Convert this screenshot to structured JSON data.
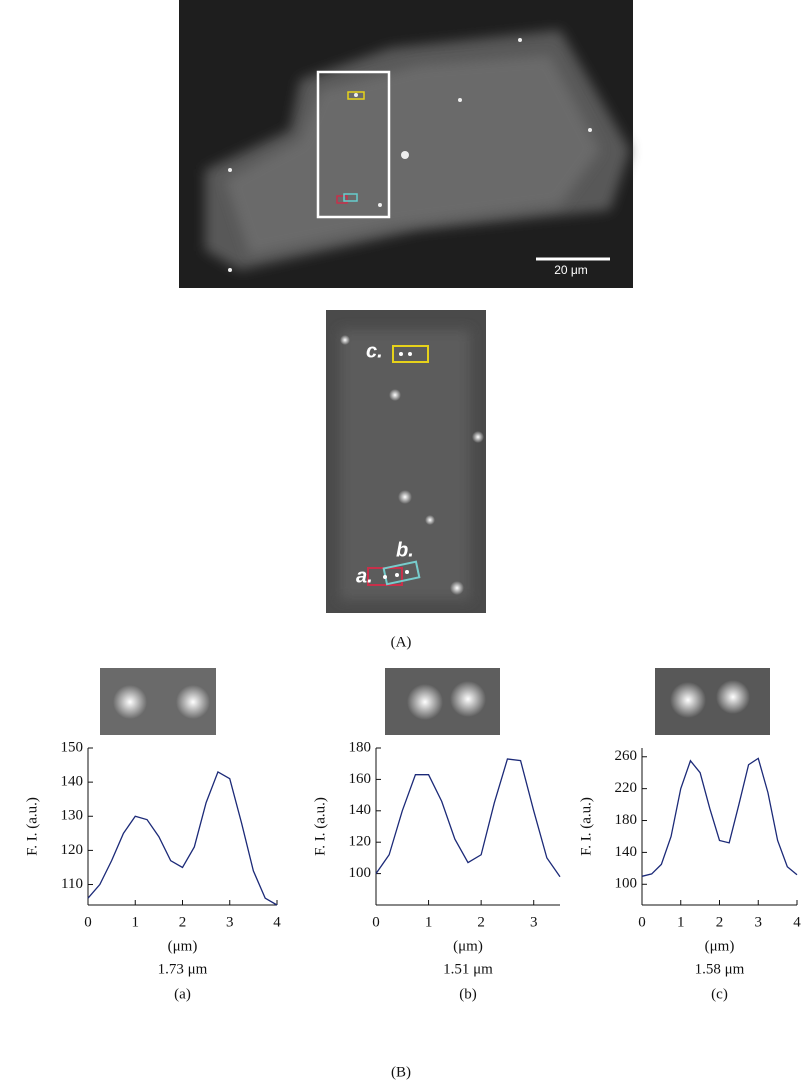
{
  "figure": {
    "scale_bar": "20 μm",
    "roi_labels": [
      "a.",
      "b.",
      "c."
    ],
    "panel_a_label": "(A)",
    "panel_b_label": "(B)"
  },
  "chart_data": [
    {
      "type": "line",
      "y_label": "F. I. (a.u.)",
      "x_label": "(μm)",
      "subtitle": "1.73 μm",
      "caption": "(a)",
      "color": "#1c2a78",
      "x": [
        0,
        0.25,
        0.5,
        0.75,
        1,
        1.25,
        1.5,
        1.75,
        2,
        2.25,
        2.5,
        2.75,
        3,
        3.25,
        3.5,
        3.75,
        4
      ],
      "values": [
        106,
        110,
        117,
        125,
        130,
        129,
        124,
        117,
        115,
        121,
        134,
        143,
        141,
        128,
        114,
        106,
        104
      ],
      "xlim": [
        0,
        4
      ],
      "xticks": [
        0,
        1,
        2,
        3,
        4
      ],
      "ylim": [
        104,
        150
      ],
      "yticks": [
        110,
        120,
        130,
        140,
        150
      ]
    },
    {
      "type": "line",
      "y_label": "F. I. (a.u.)",
      "x_label": "(μm)",
      "subtitle": "1.51 μm",
      "caption": "(b)",
      "color": "#1c2a78",
      "x": [
        0,
        0.25,
        0.5,
        0.75,
        1,
        1.25,
        1.5,
        1.75,
        2,
        2.25,
        2.5,
        2.75,
        3,
        3.25,
        3.5
      ],
      "values": [
        100,
        112,
        140,
        163,
        163,
        146,
        122,
        107,
        112,
        145,
        173,
        172,
        140,
        110,
        98
      ],
      "xlim": [
        0,
        3.5
      ],
      "xticks": [
        0,
        1,
        2,
        3
      ],
      "ylim": [
        80,
        180
      ],
      "yticks": [
        100,
        120,
        140,
        160,
        180
      ]
    },
    {
      "type": "line",
      "y_label": "F. I. (a.u.)",
      "x_label": "(μm)",
      "subtitle": "1.58 μm",
      "caption": "(c)",
      "color": "#1c2a78",
      "x": [
        0,
        0.25,
        0.5,
        0.75,
        1,
        1.25,
        1.5,
        1.75,
        2,
        2.25,
        2.5,
        2.75,
        3,
        3.25,
        3.5,
        3.75,
        4
      ],
      "values": [
        110,
        113,
        125,
        160,
        220,
        255,
        240,
        195,
        155,
        152,
        200,
        250,
        258,
        215,
        155,
        122,
        112
      ],
      "xlim": [
        0,
        4
      ],
      "xticks": [
        0,
        1,
        2,
        3,
        4
      ],
      "ylim": [
        74,
        271
      ],
      "yticks": [
        100,
        140,
        180,
        220,
        260
      ]
    }
  ]
}
